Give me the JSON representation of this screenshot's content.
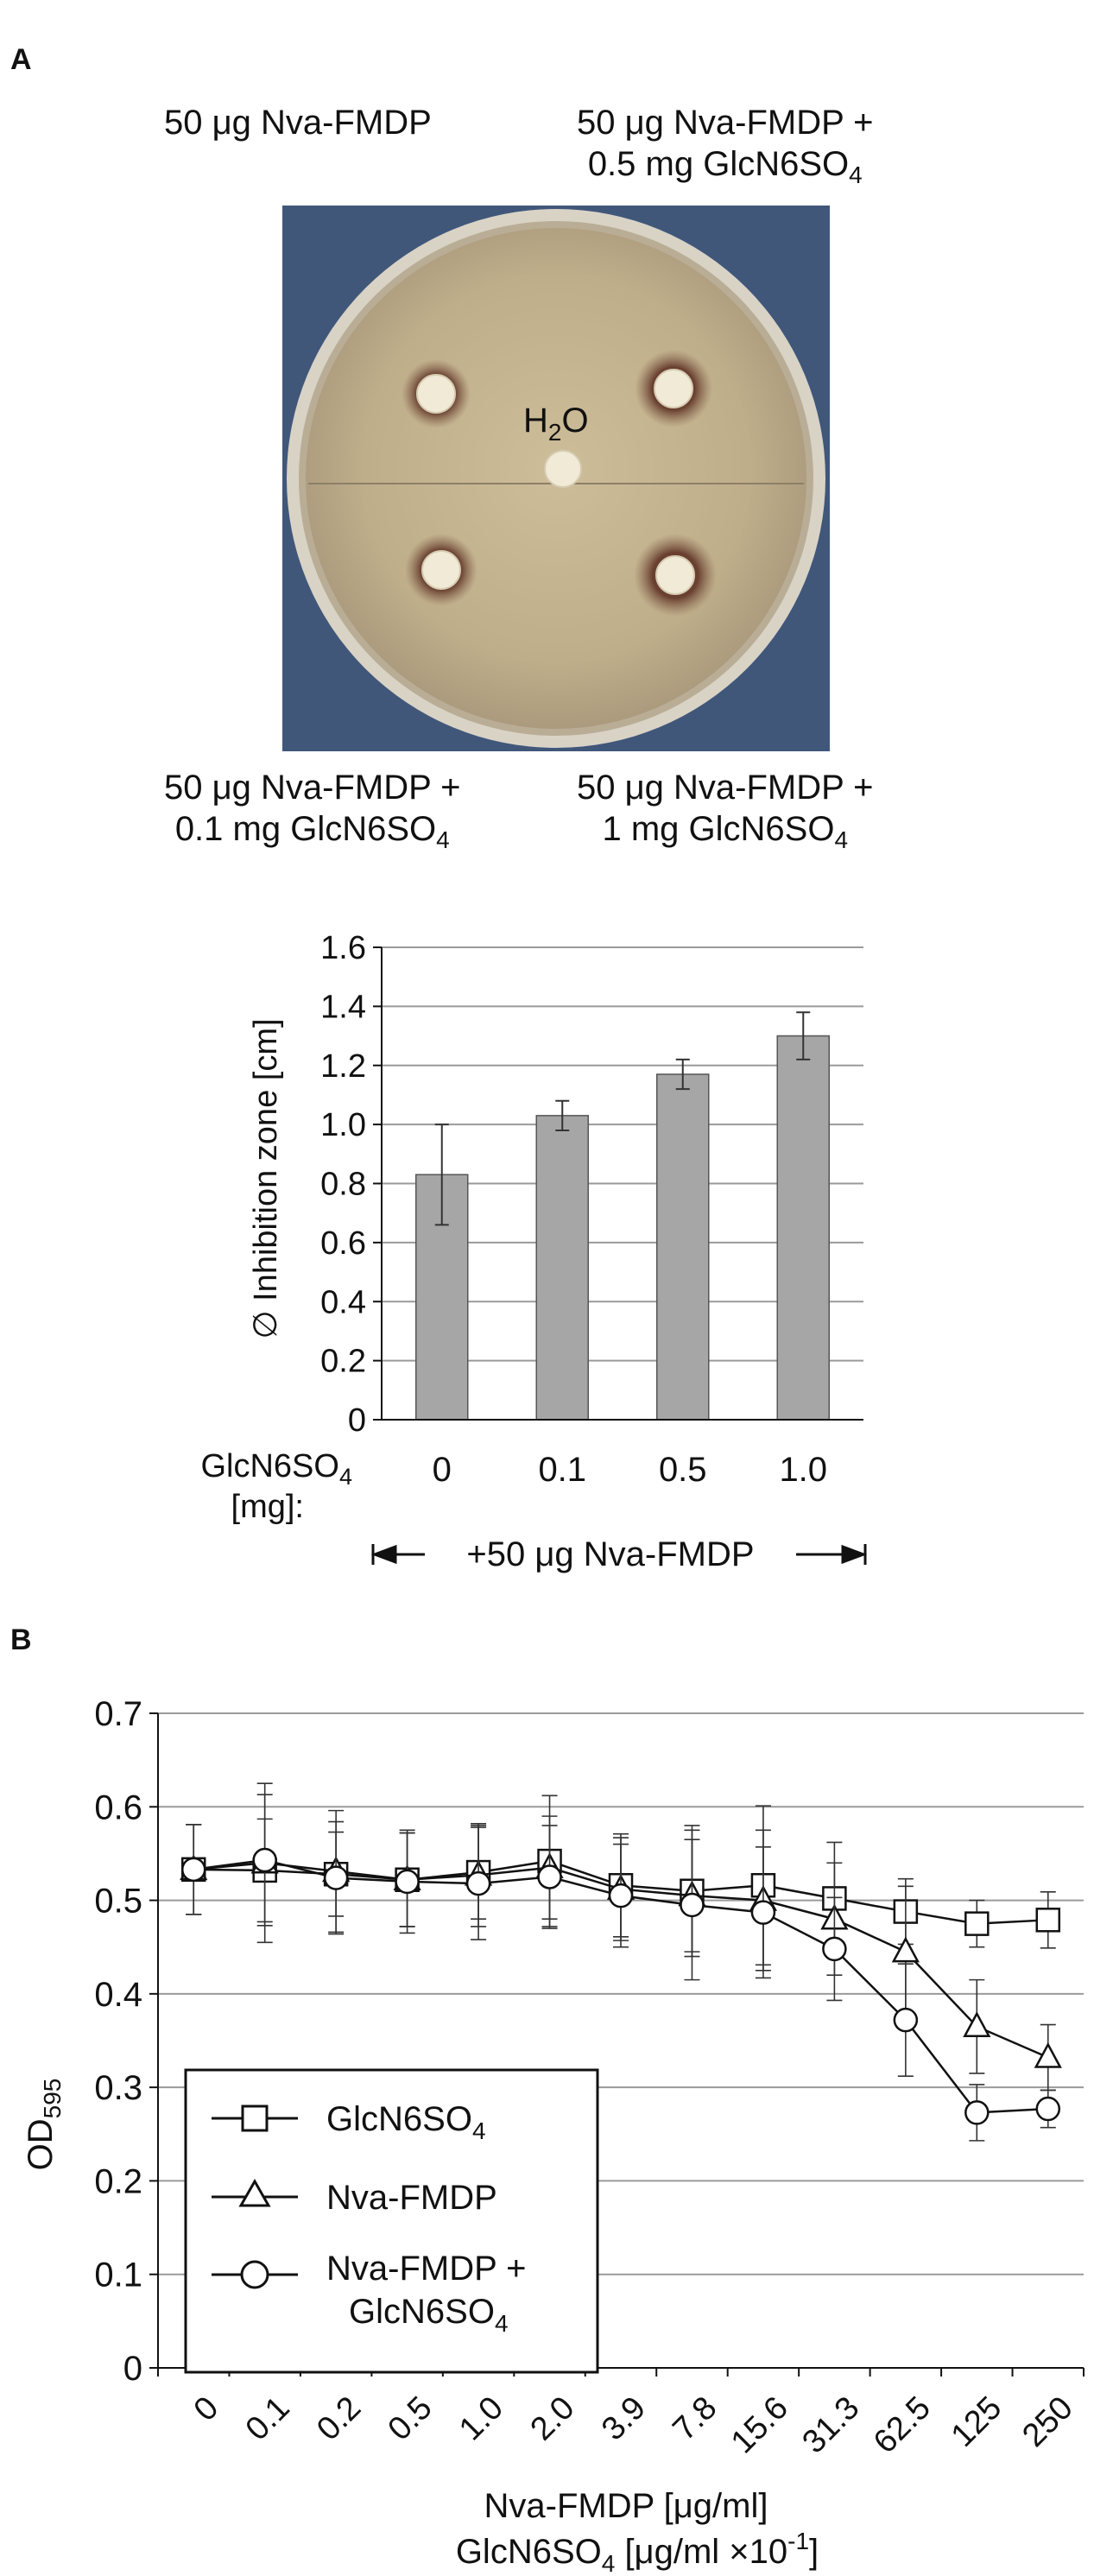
{
  "panel_a": {
    "label": "A",
    "plate_labels": {
      "top_left": "50 μg Nva-FMDP",
      "top_right_line1": "50 μg Nva-FMDP +",
      "top_right_line2": "0.5 mg GlcN6SO",
      "top_right_sub": "4",
      "bottom_left_line1": "50 μg Nva-FMDP +",
      "bottom_left_line2": "0.1 mg GlcN6SO",
      "bottom_left_sub": "4",
      "bottom_right_line1": "50 μg Nva-FMDP +",
      "bottom_right_line2": "1 mg GlcN6SO",
      "bottom_right_sub": "4",
      "center_main": "H",
      "center_sub": "2",
      "center_tail": "O"
    }
  },
  "panel_b": {
    "label": "B"
  },
  "chart_data": [
    {
      "type": "bar",
      "ylabel": "∅ Inhibition zone [cm]",
      "ylim": [
        0,
        1.6
      ],
      "yticks": [
        "0",
        "0.2",
        "0.4",
        "0.6",
        "0.8",
        "1.0",
        "1.2",
        "1.4",
        "1.6"
      ],
      "categories": [
        "0",
        "0.1",
        "0.5",
        "1.0"
      ],
      "values": [
        0.83,
        1.03,
        1.17,
        1.3
      ],
      "errors": [
        0.17,
        0.05,
        0.05,
        0.08
      ],
      "grid": true,
      "bar_color": "#a6a6a6",
      "x_row_label_line1_main": "GlcN6SO",
      "x_row_label_line1_sub": "4",
      "x_row_label_line2": "[mg]:",
      "bracket_label": "+50 μg Nva-FMDP"
    },
    {
      "type": "line",
      "ylabel_main": "OD",
      "ylabel_sub": "595",
      "ylim": [
        0,
        0.7
      ],
      "yticks": [
        "0",
        "0.1",
        "0.2",
        "0.3",
        "0.4",
        "0.5",
        "0.6",
        "0.7"
      ],
      "categories": [
        "0",
        "0.1",
        "0.2",
        "0.5",
        "1.0",
        "2.0",
        "3.9",
        "7.8",
        "15.6",
        "31.3",
        "62.5",
        "125",
        "250"
      ],
      "xlabel_line1": "Nva-FMDP [μg/ml]",
      "xlabel_line2_main": "GlcN6SO",
      "xlabel_line2_sub": "4",
      "xlabel_line2_tail": " [μg/ml ×10",
      "xlabel_line2_sup": "-1",
      "xlabel_line2_end": "]",
      "grid": true,
      "legend_position": "bottom-left",
      "series": [
        {
          "name_main": "GlcN6SO",
          "name_sub": "4",
          "marker": "square",
          "values": [
            0.533,
            0.532,
            0.528,
            0.522,
            0.53,
            0.542,
            0.516,
            0.51,
            0.516,
            0.502,
            0.488,
            0.475,
            0.479
          ],
          "errors": [
            0.048,
            0.055,
            0.045,
            0.05,
            0.05,
            0.07,
            0.055,
            0.07,
            0.085,
            0.06,
            0.035,
            0.025,
            0.03
          ]
        },
        {
          "name_main": "Nva-FMDP",
          "name_sub": "",
          "marker": "triangle",
          "values": [
            0.533,
            0.54,
            0.531,
            0.522,
            0.527,
            0.535,
            0.512,
            0.505,
            0.5,
            0.48,
            0.445,
            0.365,
            0.332
          ],
          "errors": [
            0.048,
            0.085,
            0.065,
            0.05,
            0.055,
            0.055,
            0.055,
            0.06,
            0.075,
            0.06,
            0.07,
            0.05,
            0.035
          ]
        },
        {
          "name_main": "Nva-FMDP +",
          "name_line2_main": "GlcN6SO",
          "name_line2_sub": "4",
          "marker": "circle",
          "values": [
            0.533,
            0.543,
            0.524,
            0.52,
            0.518,
            0.525,
            0.505,
            0.495,
            0.487,
            0.448,
            0.372,
            0.273,
            0.277
          ],
          "errors": [
            0.048,
            0.07,
            0.06,
            0.055,
            0.06,
            0.055,
            0.055,
            0.08,
            0.07,
            0.055,
            0.06,
            0.03,
            0.02
          ]
        }
      ]
    }
  ]
}
